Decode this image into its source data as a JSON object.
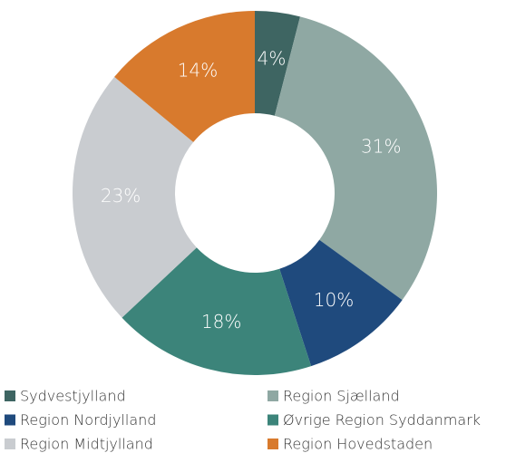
{
  "chart_data": {
    "type": "donut",
    "categories": [
      "Sydvestjylland",
      "Region Sjælland",
      "Region Nordjylland",
      "Øvrige Region Syddanmark",
      "Region Midtjylland",
      "Region Hovedstaden"
    ],
    "values": [
      4,
      31,
      10,
      18,
      23,
      14
    ],
    "value_labels": [
      "4%",
      "31%",
      "10%",
      "18%",
      "23%",
      "14%"
    ],
    "colors": [
      "#3e6562",
      "#8fa8a3",
      "#1f4a7d",
      "#3c847a",
      "#c9ccd0",
      "#d87a2d"
    ],
    "legend": "bottom"
  }
}
